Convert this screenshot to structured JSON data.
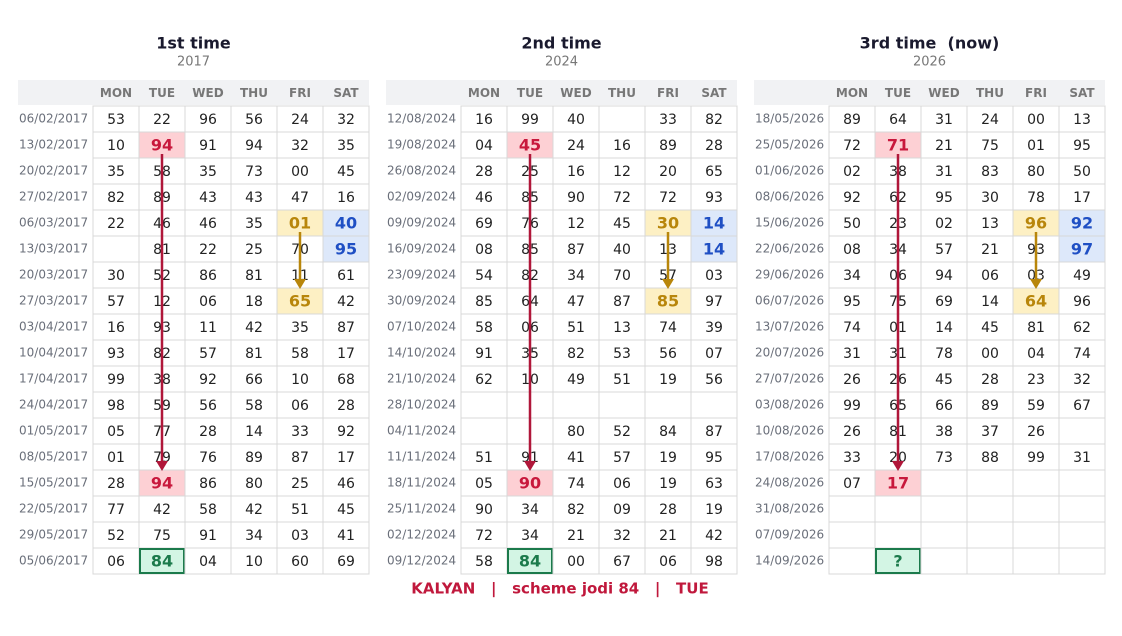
{
  "panels": [
    {
      "title": "1st time",
      "subtitle": "2017",
      "days": [
        "MON",
        "TUE",
        "WED",
        "THU",
        "FRI",
        "SAT"
      ],
      "rows": [
        {
          "date": "06/02/2017",
          "cells": [
            "53",
            "22",
            "96",
            "56",
            "24",
            "32"
          ]
        },
        {
          "date": "13/02/2017",
          "cells": [
            "10",
            "94",
            "91",
            "94",
            "32",
            "35"
          ]
        },
        {
          "date": "20/02/2017",
          "cells": [
            "35",
            "58",
            "35",
            "73",
            "00",
            "45"
          ]
        },
        {
          "date": "27/02/2017",
          "cells": [
            "82",
            "89",
            "43",
            "43",
            "47",
            "16"
          ]
        },
        {
          "date": "06/03/2017",
          "cells": [
            "22",
            "46",
            "46",
            "35",
            "01",
            "40"
          ]
        },
        {
          "date": "13/03/2017",
          "cells": [
            null,
            "81",
            "22",
            "25",
            "70",
            "95"
          ]
        },
        {
          "date": "20/03/2017",
          "cells": [
            "30",
            "52",
            "86",
            "81",
            "11",
            "61"
          ]
        },
        {
          "date": "27/03/2017",
          "cells": [
            "57",
            "12",
            "06",
            "18",
            "65",
            "42"
          ]
        },
        {
          "date": "03/04/2017",
          "cells": [
            "16",
            "93",
            "11",
            "42",
            "35",
            "87"
          ]
        },
        {
          "date": "10/04/2017",
          "cells": [
            "93",
            "82",
            "57",
            "81",
            "58",
            "17"
          ]
        },
        {
          "date": "17/04/2017",
          "cells": [
            "99",
            "38",
            "92",
            "66",
            "10",
            "68"
          ]
        },
        {
          "date": "24/04/2017",
          "cells": [
            "98",
            "59",
            "56",
            "58",
            "06",
            "28"
          ]
        },
        {
          "date": "01/05/2017",
          "cells": [
            "05",
            "77",
            "28",
            "14",
            "33",
            "92"
          ]
        },
        {
          "date": "08/05/2017",
          "cells": [
            "01",
            "79",
            "76",
            "89",
            "87",
            "17"
          ]
        },
        {
          "date": "15/05/2017",
          "cells": [
            "28",
            "94",
            "86",
            "80",
            "25",
            "46"
          ]
        },
        {
          "date": "22/05/2017",
          "cells": [
            "77",
            "42",
            "58",
            "42",
            "51",
            "45"
          ]
        },
        {
          "date": "29/05/2017",
          "cells": [
            "52",
            "75",
            "91",
            "34",
            "03",
            "41"
          ]
        },
        {
          "date": "05/06/2017",
          "cells": [
            "06",
            "84",
            "04",
            "10",
            "60",
            "69"
          ]
        }
      ]
    },
    {
      "title": "2nd time",
      "subtitle": "2024",
      "days": [
        "MON",
        "TUE",
        "WED",
        "THU",
        "FRI",
        "SAT"
      ],
      "rows": [
        {
          "date": "12/08/2024",
          "cells": [
            "16",
            "99",
            "40",
            null,
            "33",
            "82"
          ]
        },
        {
          "date": "19/08/2024",
          "cells": [
            "04",
            "45",
            "24",
            "16",
            "89",
            "28"
          ]
        },
        {
          "date": "26/08/2024",
          "cells": [
            "28",
            "25",
            "16",
            "12",
            "20",
            "65"
          ]
        },
        {
          "date": "02/09/2024",
          "cells": [
            "46",
            "85",
            "90",
            "72",
            "72",
            "93"
          ]
        },
        {
          "date": "09/09/2024",
          "cells": [
            "69",
            "76",
            "12",
            "45",
            "30",
            "14"
          ]
        },
        {
          "date": "16/09/2024",
          "cells": [
            "08",
            "85",
            "87",
            "40",
            "13",
            "14"
          ]
        },
        {
          "date": "23/09/2024",
          "cells": [
            "54",
            "82",
            "34",
            "70",
            "57",
            "03"
          ]
        },
        {
          "date": "30/09/2024",
          "cells": [
            "85",
            "64",
            "47",
            "87",
            "85",
            "97"
          ]
        },
        {
          "date": "07/10/2024",
          "cells": [
            "58",
            "06",
            "51",
            "13",
            "74",
            "39"
          ]
        },
        {
          "date": "14/10/2024",
          "cells": [
            "91",
            "35",
            "82",
            "53",
            "56",
            "07"
          ]
        },
        {
          "date": "21/10/2024",
          "cells": [
            "62",
            "10",
            "49",
            "51",
            "19",
            "56"
          ]
        },
        {
          "date": "28/10/2024",
          "cells": [
            null,
            null,
            null,
            null,
            null,
            null
          ]
        },
        {
          "date": "04/11/2024",
          "cells": [
            null,
            null,
            "80",
            "52",
            "84",
            "87"
          ]
        },
        {
          "date": "11/11/2024",
          "cells": [
            "51",
            "91",
            "41",
            "57",
            "19",
            "95"
          ]
        },
        {
          "date": "18/11/2024",
          "cells": [
            "05",
            "90",
            "74",
            "06",
            "19",
            "63"
          ]
        },
        {
          "date": "25/11/2024",
          "cells": [
            "90",
            "34",
            "82",
            "09",
            "28",
            "19"
          ]
        },
        {
          "date": "02/12/2024",
          "cells": [
            "72",
            "34",
            "21",
            "32",
            "21",
            "42"
          ]
        },
        {
          "date": "09/12/2024",
          "cells": [
            "58",
            "84",
            "00",
            "67",
            "06",
            "98"
          ]
        }
      ]
    },
    {
      "title": "3rd time  (now)",
      "subtitle": "2026",
      "days": [
        "MON",
        "TUE",
        "WED",
        "THU",
        "FRI",
        "SAT"
      ],
      "rows": [
        {
          "date": "18/05/2026",
          "cells": [
            "89",
            "64",
            "31",
            "24",
            "00",
            "13"
          ]
        },
        {
          "date": "25/05/2026",
          "cells": [
            "72",
            "71",
            "21",
            "75",
            "01",
            "95"
          ]
        },
        {
          "date": "01/06/2026",
          "cells": [
            "02",
            "38",
            "31",
            "83",
            "80",
            "50"
          ]
        },
        {
          "date": "08/06/2026",
          "cells": [
            "92",
            "62",
            "95",
            "30",
            "78",
            "17"
          ]
        },
        {
          "date": "15/06/2026",
          "cells": [
            "50",
            "23",
            "02",
            "13",
            "96",
            "92"
          ]
        },
        {
          "date": "22/06/2026",
          "cells": [
            "08",
            "34",
            "57",
            "21",
            "93",
            "97"
          ]
        },
        {
          "date": "29/06/2026",
          "cells": [
            "34",
            "06",
            "94",
            "06",
            "03",
            "49"
          ]
        },
        {
          "date": "06/07/2026",
          "cells": [
            "95",
            "75",
            "69",
            "14",
            "64",
            "96"
          ]
        },
        {
          "date": "13/07/2026",
          "cells": [
            "74",
            "01",
            "14",
            "45",
            "81",
            "62"
          ]
        },
        {
          "date": "20/07/2026",
          "cells": [
            "31",
            "31",
            "78",
            "00",
            "04",
            "74"
          ]
        },
        {
          "date": "27/07/2026",
          "cells": [
            "26",
            "26",
            "45",
            "28",
            "23",
            "32"
          ]
        },
        {
          "date": "03/08/2026",
          "cells": [
            "99",
            "65",
            "66",
            "89",
            "59",
            "67"
          ]
        },
        {
          "date": "10/08/2026",
          "cells": [
            "26",
            "81",
            "38",
            "37",
            "26",
            null
          ]
        },
        {
          "date": "17/08/2026",
          "cells": [
            "33",
            "20",
            "73",
            "88",
            "99",
            "31"
          ]
        },
        {
          "date": "24/08/2026",
          "cells": [
            "07",
            "17",
            null,
            null,
            null,
            null
          ]
        },
        {
          "date": "31/08/2026",
          "cells": [
            null,
            null,
            null,
            null,
            null,
            null
          ]
        },
        {
          "date": "07/09/2026",
          "cells": [
            null,
            null,
            null,
            null,
            null,
            null
          ]
        },
        {
          "date": "14/09/2026",
          "cells": [
            null,
            "?",
            null,
            null,
            null,
            null
          ]
        }
      ]
    }
  ],
  "footer": "KALYAN   |   scheme jodi 84   |   TUE"
}
